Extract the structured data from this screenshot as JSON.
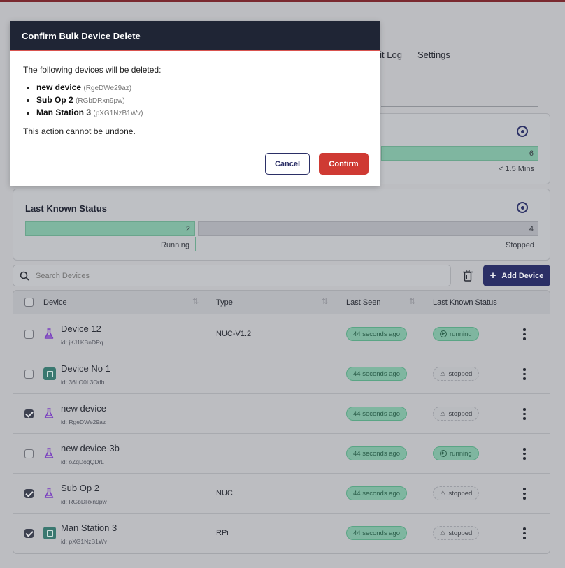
{
  "tabs": [
    "Audit Log",
    "Settings"
  ],
  "card1": {
    "value": "6",
    "label": "< 1.5 Mins"
  },
  "card2": {
    "title": "Last Known Status",
    "running_value": "2",
    "running_label": "Running",
    "stopped_value": "4",
    "stopped_label": "Stopped",
    "running_fraction": 0.333
  },
  "search": {
    "placeholder": "Search Devices"
  },
  "add_button": "Add Device",
  "table": {
    "headers": [
      "Device",
      "Type",
      "Last Seen",
      "Last Known Status"
    ],
    "rows": [
      {
        "name": "Device 12",
        "id": "id: jKJ1KBnDPq",
        "type": "NUC-V1.2",
        "seen": "44 seconds ago",
        "status": "running",
        "icon": "flask",
        "checked": false
      },
      {
        "name": "Device No 1",
        "id": "id: 36LO0L3Odb",
        "type": "",
        "seen": "44 seconds ago",
        "status": "stopped",
        "icon": "chip",
        "checked": false
      },
      {
        "name": "new device",
        "id": "id: RgeDWe29az",
        "type": "",
        "seen": "44 seconds ago",
        "status": "stopped",
        "icon": "flask",
        "checked": true
      },
      {
        "name": "new device-3b",
        "id": "id: oZqDoqQDrL",
        "type": "",
        "seen": "44 seconds ago",
        "status": "running",
        "icon": "flask",
        "checked": false
      },
      {
        "name": "Sub Op 2",
        "id": "id: RGbDRxn9pw",
        "type": "NUC",
        "seen": "44 seconds ago",
        "status": "stopped",
        "icon": "flask",
        "checked": true
      },
      {
        "name": "Man Station 3",
        "id": "id: pXG1NzB1Wv",
        "type": "RPi",
        "seen": "44 seconds ago",
        "status": "stopped",
        "icon": "chip",
        "checked": true
      }
    ]
  },
  "modal": {
    "title": "Confirm Bulk Device Delete",
    "intro": "The following devices will be deleted:",
    "items": [
      {
        "name": "new device",
        "id": "(RgeDWe29az)"
      },
      {
        "name": "Sub Op 2",
        "id": "(RGbDRxn9pw)"
      },
      {
        "name": "Man Station 3",
        "id": "(pXG1NzB1Wv)"
      }
    ],
    "warning": "This action cannot be undone.",
    "cancel": "Cancel",
    "confirm": "Confirm"
  },
  "colors": {
    "accent": "#2b2f66",
    "danger": "#cf3a33",
    "running": "#7fb6a0"
  }
}
